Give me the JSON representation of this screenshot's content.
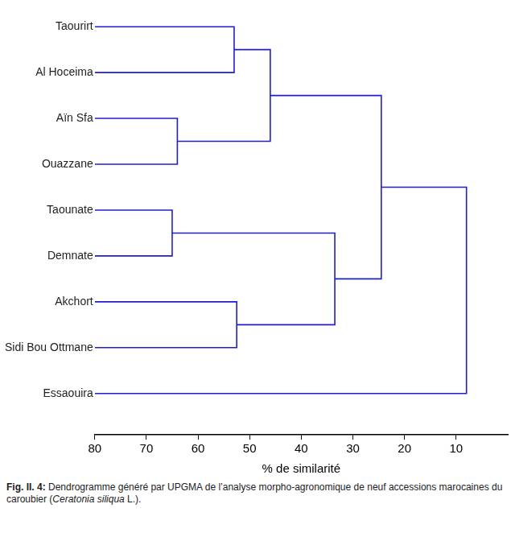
{
  "chart_data": {
    "type": "dendrogram",
    "x_label": "% de similarité",
    "xlim": [
      80,
      0
    ],
    "xticks": [
      80,
      70,
      60,
      50,
      40,
      30,
      20,
      10
    ],
    "color": "#1f1fcc",
    "grid": false,
    "tree": {
      "height": 8,
      "children": [
        {
          "height": 24.5,
          "children": [
            {
              "height": 46,
              "children": [
                {
                  "height": 53,
                  "children": [
                    {
                      "leaf": "Taourirt"
                    },
                    {
                      "leaf": "Al Hoceima"
                    }
                  ]
                },
                {
                  "height": 64,
                  "children": [
                    {
                      "leaf": "Aïn Sfa"
                    },
                    {
                      "leaf": "Ouazzane"
                    }
                  ]
                }
              ]
            },
            {
              "height": 33.5,
              "children": [
                {
                  "height": 65,
                  "children": [
                    {
                      "leaf": "Taounate"
                    },
                    {
                      "leaf": "Demnate"
                    }
                  ]
                },
                {
                  "height": 52.5,
                  "children": [
                    {
                      "leaf": "Akchort"
                    },
                    {
                      "leaf": "Sidi Bou Ottmane"
                    }
                  ]
                }
              ]
            }
          ]
        },
        {
          "leaf": "Essaouira"
        }
      ]
    }
  },
  "caption": {
    "label": "Fig. II. 4:",
    "text_before": " Dendrogramme généré par UPGMA de l’analyse morpho-agronomique de neuf accessions marocaines du caroubier (",
    "species": "Ceratonia siliqua",
    "text_after": " L.)."
  }
}
